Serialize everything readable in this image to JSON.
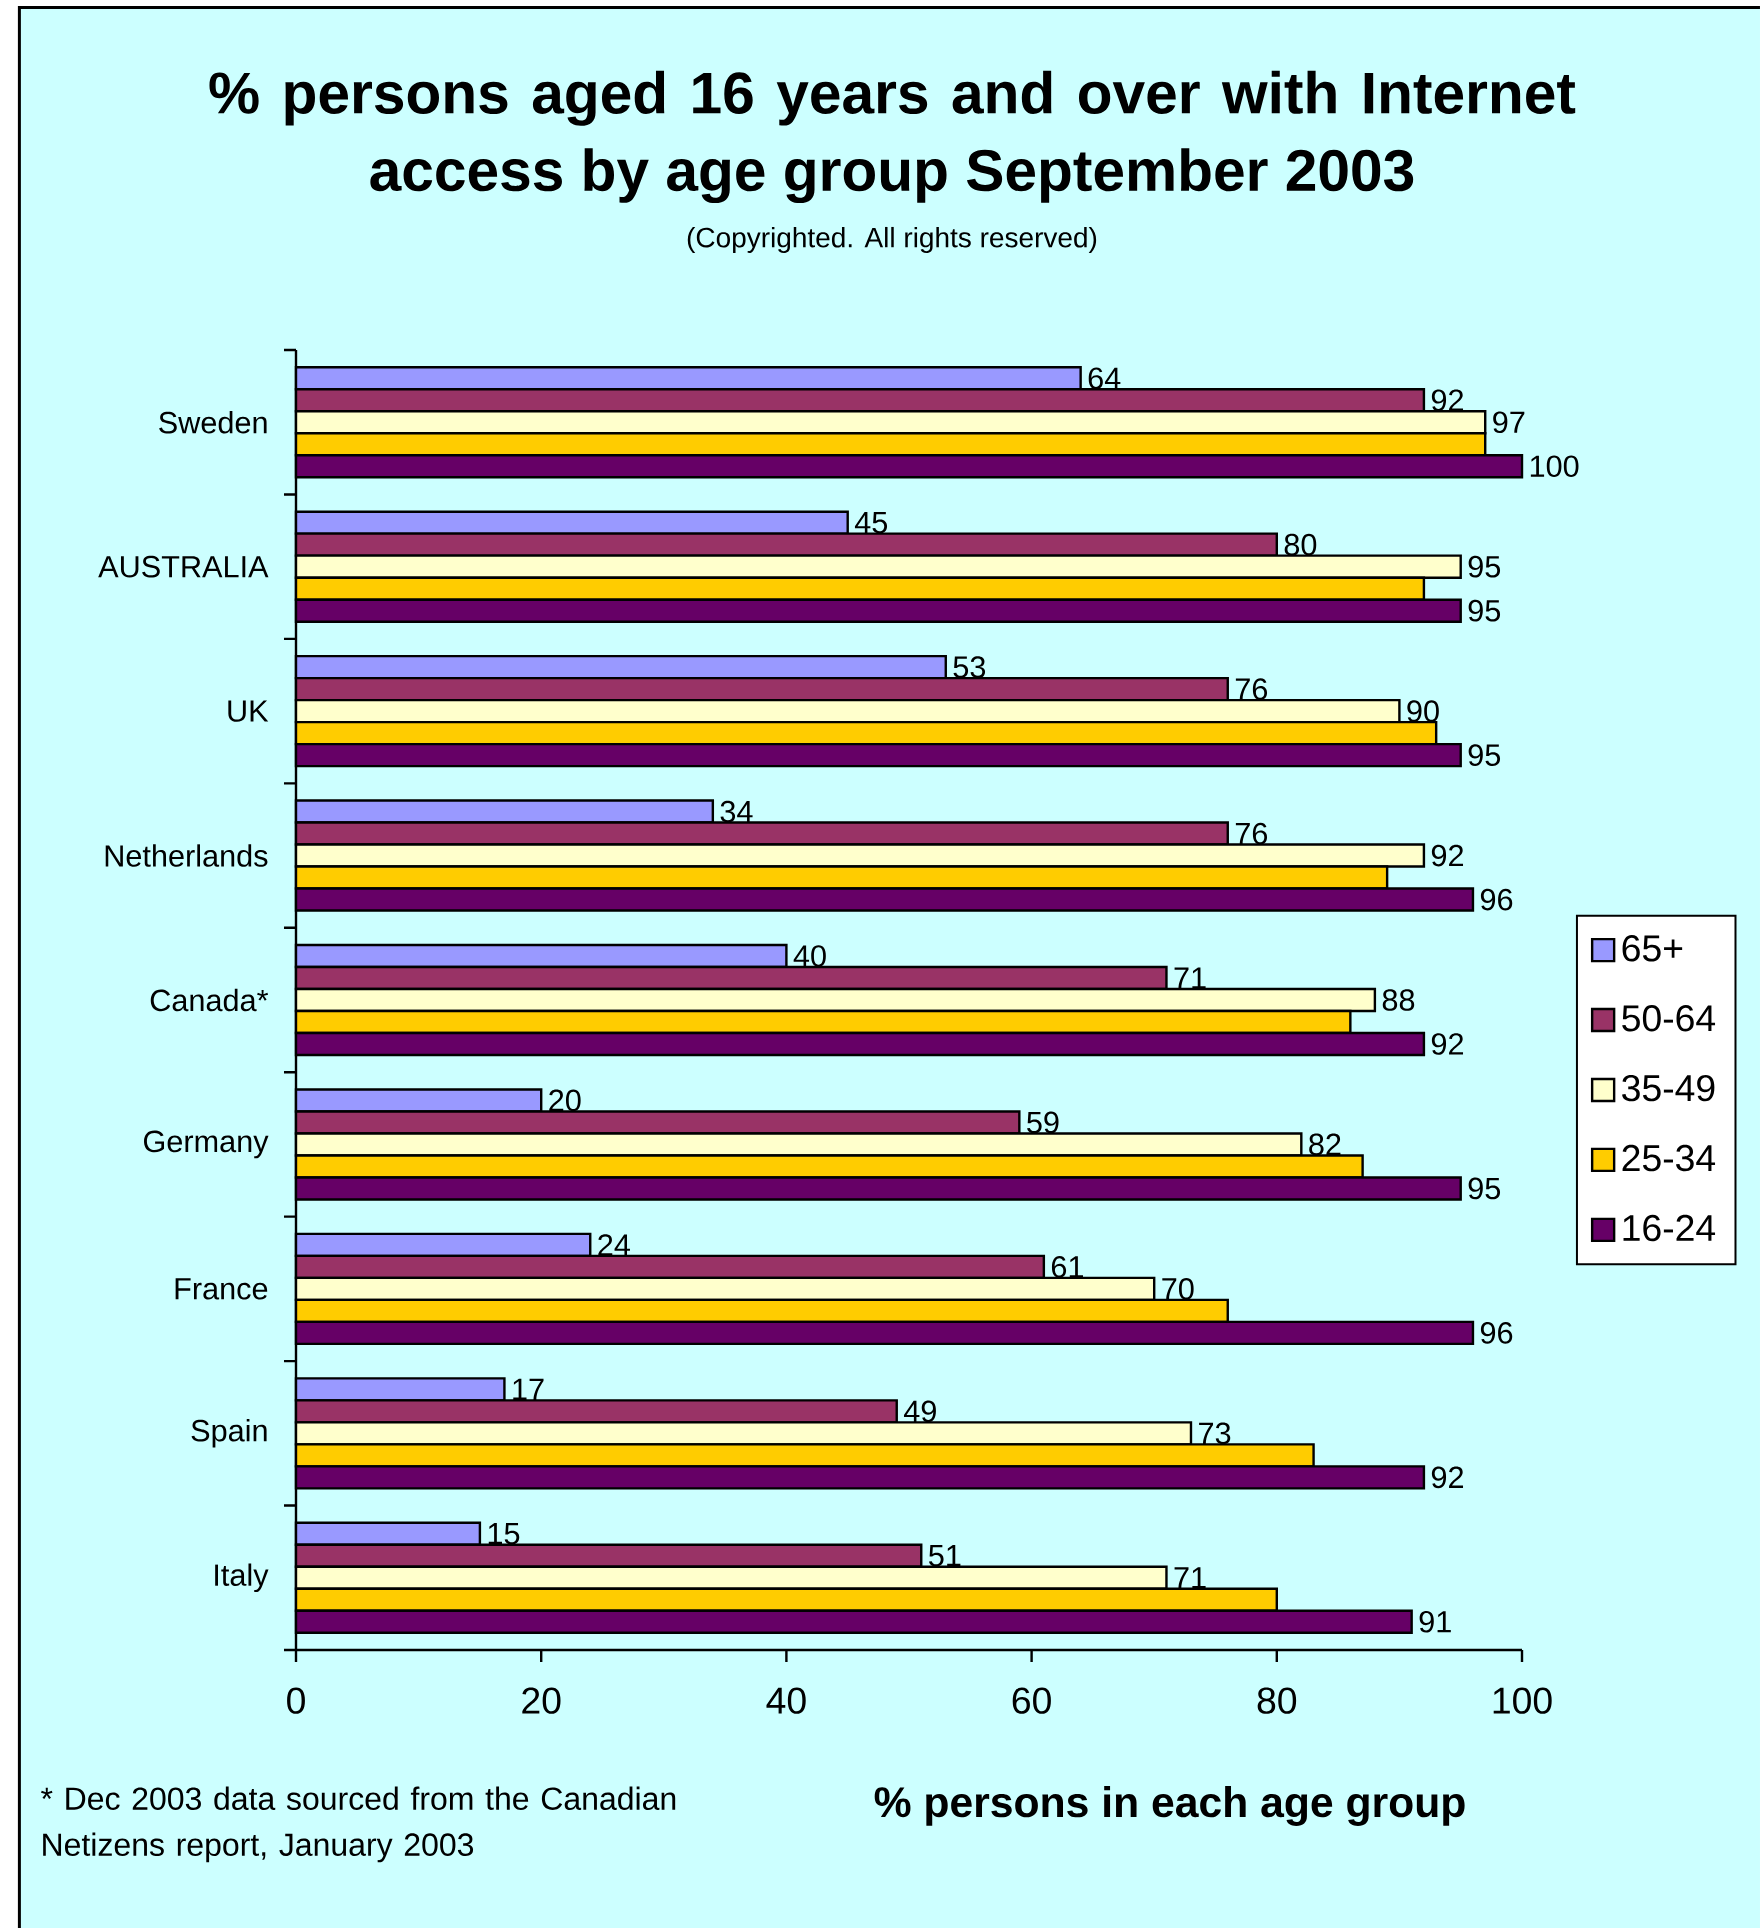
{
  "chart_data": {
    "type": "bar",
    "orientation": "horizontal",
    "title": "% persons aged 16 years and over with Internet access by age group September 2003",
    "subtitle": "(Copyrighted. All rights reserved)",
    "xlabel": "% persons in each age group",
    "annotations": [
      "* Dec 2003 data sourced from the Canadian Netizens report, January 2003"
    ],
    "categories": [
      "Sweden",
      "AUSTRALIA",
      "UK",
      "Netherlands",
      "Canada*",
      "Germany",
      "France",
      "Spain",
      "Italy"
    ],
    "series": [
      {
        "name": "65+",
        "color": "#9999ff",
        "values": [
          64,
          45,
          53,
          34,
          40,
          20,
          24,
          17,
          15
        ],
        "value_labels": [
          "64",
          "45",
          "53",
          "34",
          "40",
          "20",
          "24",
          "17",
          "15"
        ]
      },
      {
        "name": "50-64",
        "color": "#993366",
        "values": [
          92,
          80,
          76,
          76,
          71,
          59,
          61,
          49,
          51
        ],
        "value_labels": [
          "92",
          "80",
          "76",
          "76",
          "71",
          "59",
          "61",
          "49",
          "51"
        ]
      },
      {
        "name": "35-49",
        "color": "#ffffcc",
        "values": [
          97,
          95,
          90,
          92,
          88,
          82,
          70,
          73,
          71
        ],
        "value_labels": [
          "97",
          "95",
          "90",
          "92",
          "88",
          "82",
          "70",
          "73",
          "71"
        ]
      },
      {
        "name": "25-34",
        "color": "#ffcc00",
        "values": [
          97,
          92,
          93,
          89,
          86,
          87,
          76,
          83,
          80
        ]
      },
      {
        "name": "16-24",
        "color": "#660066",
        "values": [
          100,
          95,
          95,
          96,
          92,
          95,
          96,
          92,
          91
        ],
        "value_labels": [
          "100",
          "95",
          "95",
          "96",
          "92",
          "95",
          "96",
          "92",
          "91"
        ]
      }
    ],
    "xlim": [
      0,
      100
    ],
    "xticks": [
      0,
      20,
      40,
      60,
      80,
      100
    ],
    "legend": "right"
  }
}
